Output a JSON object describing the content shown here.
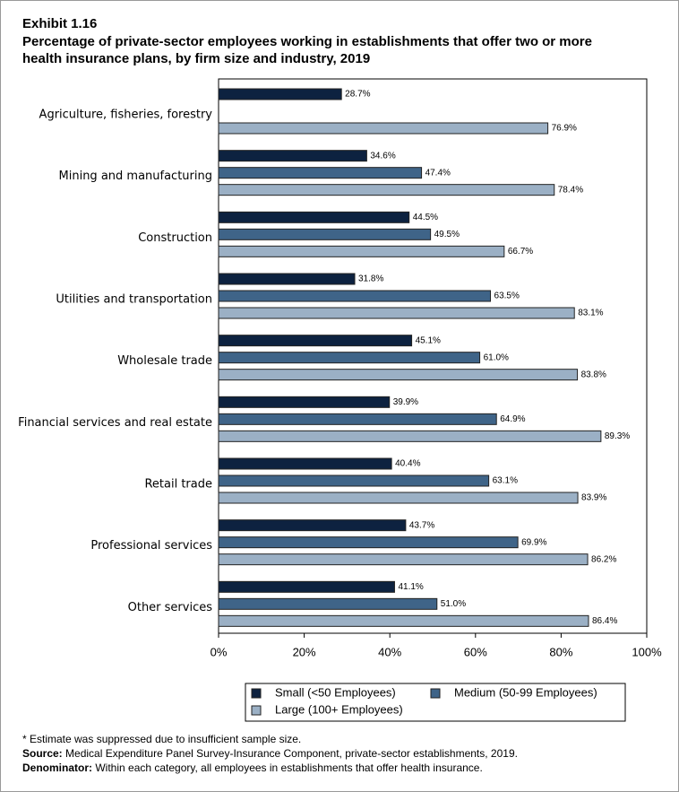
{
  "chart_data": {
    "type": "hbar",
    "exhibit": "Exhibit 1.16",
    "title": [
      "Percentage of private-sector employees working in establishments that offer two or more",
      "health insurance plans, by firm size and industry, 2019"
    ],
    "categories": [
      "Agriculture, fisheries, forestry",
      "Mining and manufacturing",
      "Construction",
      "Utilities and transportation",
      "Wholesale trade",
      "Financial services and real estate",
      "Retail trade",
      "Professional services",
      "Other services"
    ],
    "series": [
      {
        "name": "Small (<50 Employees)",
        "color": "#0d2240",
        "values": [
          28.7,
          34.6,
          44.5,
          31.8,
          45.1,
          39.9,
          40.4,
          43.7,
          41.1
        ],
        "value_labels": [
          "28.7%",
          "34.6%",
          "44.5%",
          "31.8%",
          "45.1%",
          "39.9%",
          "40.4%",
          "43.7%",
          "41.1%"
        ]
      },
      {
        "name": "Medium (50-99 Employees)",
        "color": "#3f6488",
        "values": [
          null,
          47.4,
          49.5,
          63.5,
          61.0,
          64.9,
          63.1,
          69.9,
          51.0
        ],
        "value_labels": [
          null,
          "47.4%",
          "49.5%",
          "63.5%",
          "61.0%",
          "64.9%",
          "63.1%",
          "69.9%",
          "51.0%"
        ]
      },
      {
        "name": "Large (100+ Employees)",
        "color": "#9bb0c5",
        "values": [
          76.9,
          78.4,
          66.7,
          83.1,
          83.8,
          89.3,
          83.9,
          86.2,
          86.4
        ],
        "value_labels": [
          "76.9%",
          "78.4%",
          "66.7%",
          "83.1%",
          "83.8%",
          "89.3%",
          "83.9%",
          "86.2%",
          "86.4%"
        ]
      }
    ],
    "xlim": [
      0,
      100
    ],
    "xticks": [
      {
        "value": 0,
        "label": "0%"
      },
      {
        "value": 20,
        "label": "20%"
      },
      {
        "value": 40,
        "label": "40%"
      },
      {
        "value": 60,
        "label": "60%"
      },
      {
        "value": 80,
        "label": "80%"
      },
      {
        "value": 100,
        "label": "100%"
      }
    ],
    "footnote": "* Estimate was suppressed due to insufficient sample size.",
    "source_label": "Source:",
    "source": "Medical Expenditure Panel Survey-Insurance Component, private-sector establishments, 2019.",
    "denominator_label": "Denominator:",
    "denominator": "Within each category, all employees in establishments that offer health insurance."
  }
}
